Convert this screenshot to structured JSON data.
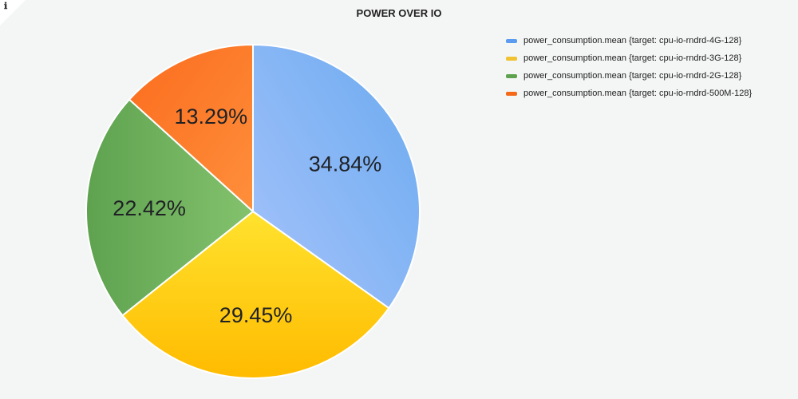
{
  "panel": {
    "info_icon": "ℹ"
  },
  "chart_data": {
    "type": "pie",
    "title": "POWER OVER IO",
    "legend_position": "top-right",
    "series": [
      {
        "name": "power_consumption.mean {target: cpu-io-rndrd-4G-128}",
        "value": 34.84,
        "label": "34.84%",
        "color": "#5b9bf0"
      },
      {
        "name": "power_consumption.mean {target: cpu-io-rndrd-3G-128}",
        "value": 29.45,
        "label": "29.45%",
        "color": "#f1c232"
      },
      {
        "name": "power_consumption.mean {target: cpu-io-rndrd-2G-128}",
        "value": 22.42,
        "label": "22.42%",
        "color": "#5ea24f"
      },
      {
        "name": "power_consumption.mean {target: cpu-io-rndrd-500M-128}",
        "value": 13.29,
        "label": "13.29%",
        "color": "#f46a18"
      }
    ]
  }
}
